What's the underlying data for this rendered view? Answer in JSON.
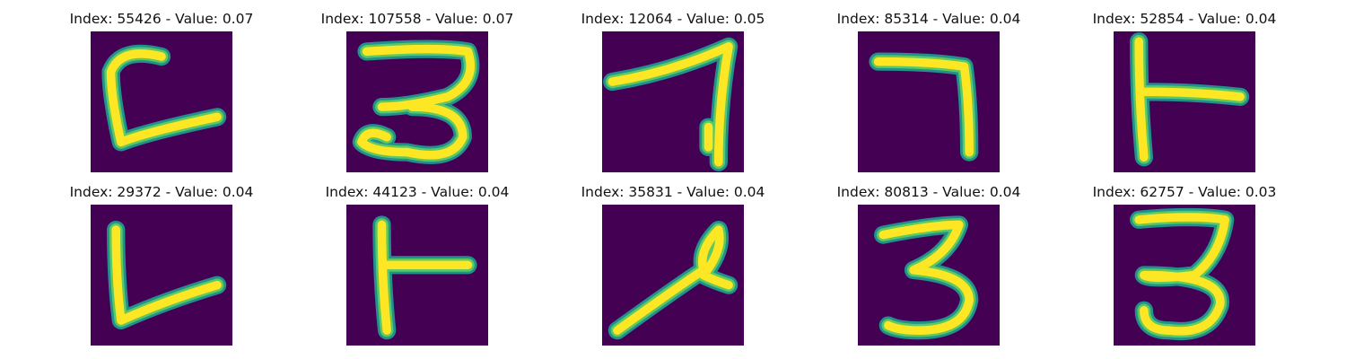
{
  "figure": {
    "background_color": "#440154",
    "stroke_colors": {
      "core": "#fde725",
      "mid": "#5ec962",
      "edge": "#21918c"
    },
    "panels": [
      {
        "title": "Index: 55426 - Value: 0.07",
        "glyph": "C-shaped stroke with tail"
      },
      {
        "title": "Index: 107558 - Value: 0.07",
        "glyph": "3"
      },
      {
        "title": "Index: 12064 - Value: 0.05",
        "glyph": "7"
      },
      {
        "title": "Index: 85314 - Value: 0.04",
        "glyph": "7"
      },
      {
        "title": "Index: 52854 - Value: 0.04",
        "glyph": "T rotated (vertical bar with right branch)"
      },
      {
        "title": "Index: 29372 - Value: 0.04",
        "glyph": "L"
      },
      {
        "title": "Index: 44123 - Value: 0.04",
        "glyph": "T rotated (vertical bar with right branch)"
      },
      {
        "title": "Index: 35831 - Value: 0.04",
        "glyph": "looped diagonal stroke"
      },
      {
        "title": "Index: 80813 - Value: 0.04",
        "glyph": "3"
      },
      {
        "title": "Index: 62757 - Value: 0.03",
        "glyph": "3"
      }
    ]
  }
}
